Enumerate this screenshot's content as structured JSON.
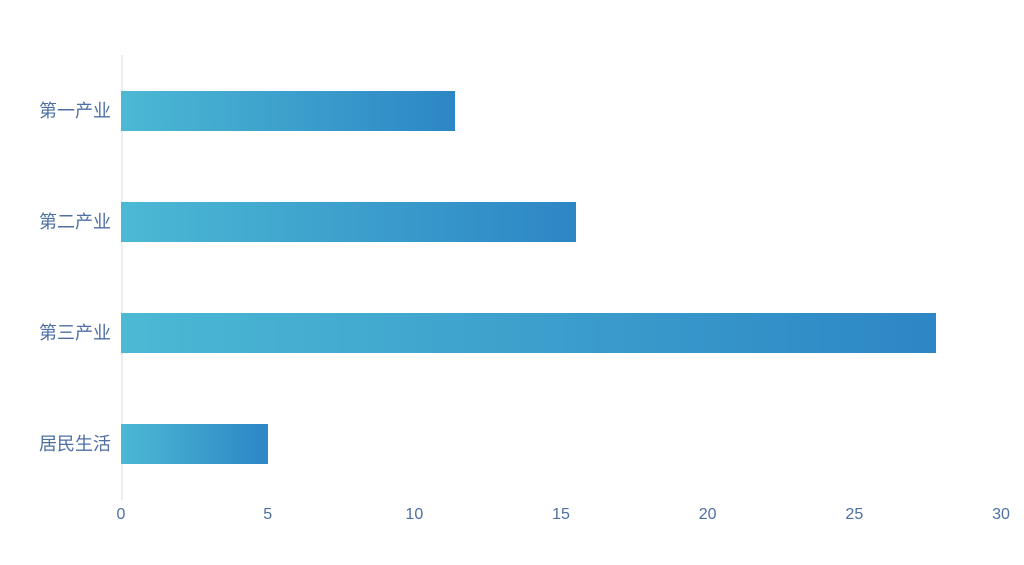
{
  "chart_data": {
    "type": "bar",
    "orientation": "horizontal",
    "title": "",
    "xlabel": "",
    "ylabel": "",
    "categories": [
      "第一产业",
      "第二产业",
      "第三产业",
      "居民生活"
    ],
    "values": [
      11.4,
      15.5,
      27.8,
      5
    ],
    "xlim": [
      0,
      30
    ],
    "xticks": [
      0,
      5,
      10,
      15,
      20,
      25,
      30
    ],
    "grid": false,
    "legend": "none",
    "colors": {
      "bar_gradient_start": "#4cb9d4",
      "bar_gradient_end": "#2d86c5",
      "axis_label": "#4d6fa3",
      "axis_line": "#ededf0",
      "background": "#ffffff"
    }
  }
}
